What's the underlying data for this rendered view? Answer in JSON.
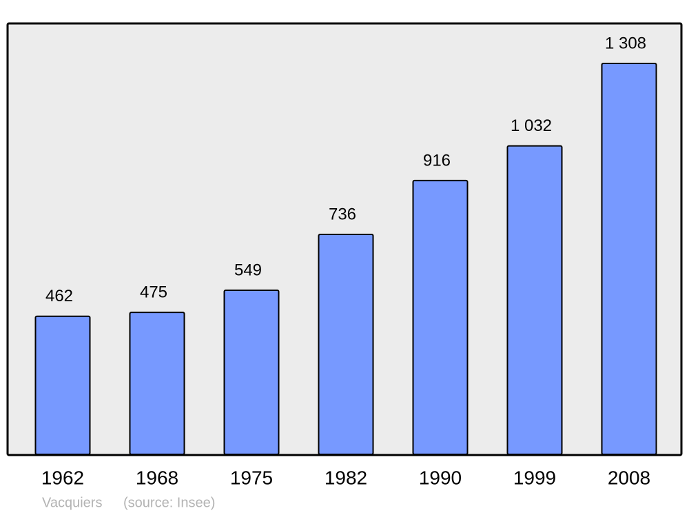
{
  "chart_data": {
    "type": "bar",
    "categories": [
      "1962",
      "1968",
      "1975",
      "1982",
      "1990",
      "1999",
      "2008"
    ],
    "values": [
      462,
      475,
      549,
      736,
      916,
      1032,
      1308
    ],
    "value_labels": [
      "462",
      "475",
      "549",
      "736",
      "916",
      "1 032",
      "1 308"
    ],
    "color": "#7799ff",
    "caption": "Vacquiers",
    "source": "(source: Insee)"
  }
}
